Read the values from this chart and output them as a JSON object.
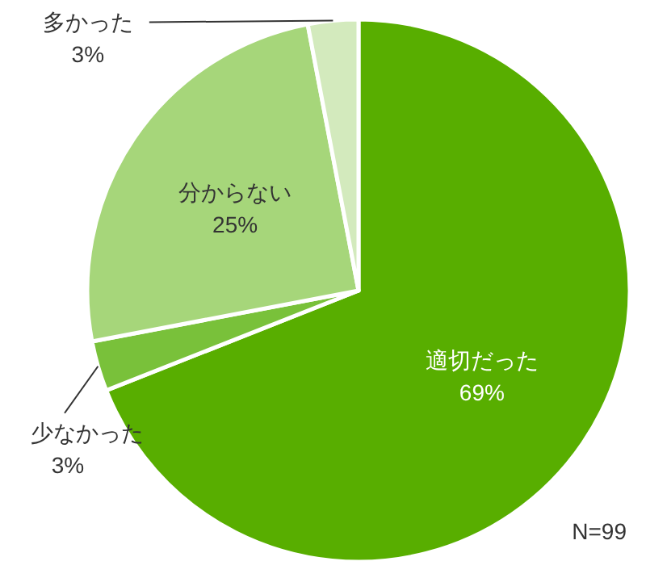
{
  "chart_data": {
    "type": "pie",
    "categories": [
      "適切だった",
      "少なかった",
      "分からない",
      "多かった"
    ],
    "values": [
      69,
      3,
      25,
      3
    ],
    "value_labels": [
      "69%",
      "3%",
      "25%",
      "3%"
    ],
    "colors": [
      "#58ae00",
      "#79c13a",
      "#a6d67a",
      "#d3eabd"
    ],
    "annotations": [
      "N=99"
    ]
  }
}
